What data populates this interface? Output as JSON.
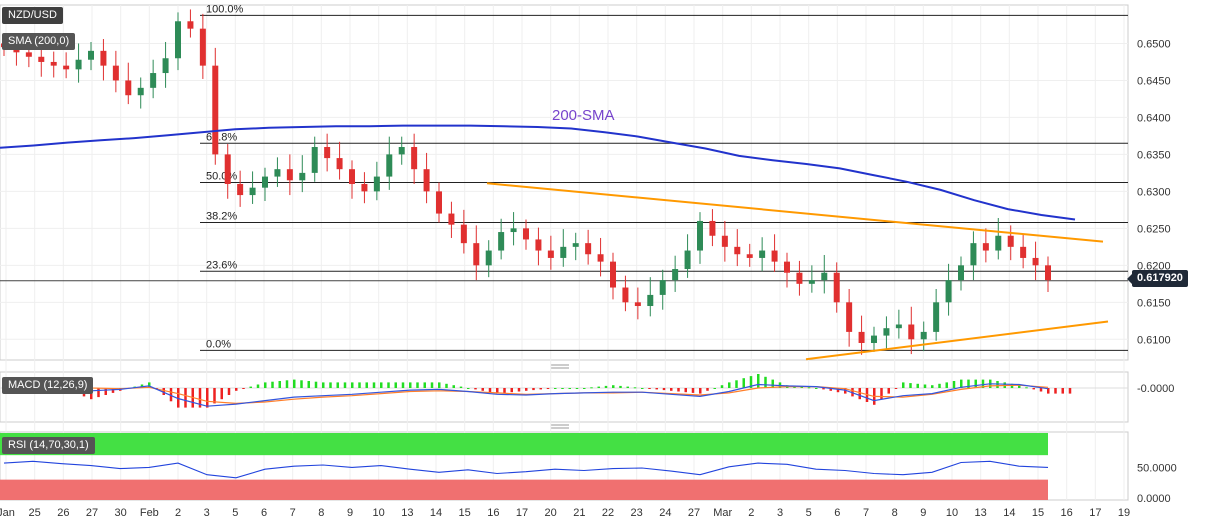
{
  "symbol": "NZD/USD",
  "indicators": {
    "sma_label": "SMA (200,0)",
    "sma_annotation": "200-SMA",
    "macd_label": "MACD (12,26,9)",
    "rsi_label": "RSI (14,70,30,1)"
  },
  "last_price": "0.617920",
  "colors": {
    "bull": "#2e8b57",
    "bear": "#e03030",
    "sma": "#2233cc",
    "trend": "#ff9900",
    "macd_line": "#3355dd",
    "signal_line": "#ff7f2a",
    "hist_pos": "#22dd22",
    "hist_neg": "#ee2222",
    "rsi_line": "#2244dd",
    "rsi_over": "#44e044",
    "rsi_under": "#f07070"
  },
  "chart_data": [
    {
      "type": "candlestick",
      "panel": "price",
      "title": "NZD/USD",
      "x_ticks": [
        "Jan",
        "25",
        "26",
        "27",
        "30",
        "Feb",
        "2",
        "3",
        "5",
        "6",
        "7",
        "8",
        "9",
        "10",
        "13",
        "14",
        "15",
        "16",
        "17",
        "20",
        "21",
        "22",
        "23",
        "24",
        "27",
        "Mar",
        "2",
        "3",
        "5",
        "6",
        "7",
        "8",
        "9",
        "10",
        "13",
        "14",
        "15",
        "16",
        "17",
        "19"
      ],
      "y_ticks": [
        "0.6500",
        "0.6450",
        "0.6400",
        "0.6350",
        "0.6300",
        "0.6250",
        "0.6200",
        "0.6150",
        "0.6100"
      ],
      "ylim": [
        0.6072,
        0.6552
      ],
      "fib_levels": [
        {
          "label": "100.0%",
          "value": 0.6538
        },
        {
          "label": "61.8%",
          "value": 0.6365
        },
        {
          "label": "50.0%",
          "value": 0.6312
        },
        {
          "label": "38.2%",
          "value": 0.6258
        },
        {
          "label": "23.6%",
          "value": 0.6192
        },
        {
          "label": "0.0%",
          "value": 0.6085
        }
      ],
      "sma_200": [
        0.6359,
        0.6362,
        0.6366,
        0.6369,
        0.6372,
        0.6376,
        0.638,
        0.6384,
        0.6386,
        0.6387,
        0.6388,
        0.6388,
        0.6389,
        0.6389,
        0.6389,
        0.6388,
        0.6387,
        0.6385,
        0.638,
        0.6374,
        0.6366,
        0.6358,
        0.6348,
        0.6342,
        0.6337,
        0.6331,
        0.6322,
        0.6313,
        0.6302,
        0.6288,
        0.6276,
        0.6268,
        0.6262
      ],
      "trendline_resistance": [
        {
          "x_idx": 0,
          "y": 0.6311
        },
        {
          "x_idx": 36,
          "y": 0.6232
        }
      ],
      "trendline_support": [
        {
          "x_idx": 0,
          "y": 0.6073
        },
        {
          "x_idx": 36,
          "y": 0.6124
        }
      ],
      "last_price": 0.61792
    },
    {
      "type": "line",
      "panel": "macd",
      "series": [
        {
          "name": "MACD"
        },
        {
          "name": "Signal"
        }
      ],
      "y_ticks": [
        "-0.0000"
      ],
      "macd_line": [
        0.0,
        0.0005,
        0.0003,
        -0.0004,
        -0.0002,
        0.0003,
        -0.0015,
        -0.0026,
        -0.0023,
        -0.0018,
        -0.0013,
        -0.0011,
        -0.0009,
        -0.0006,
        -0.0003,
        -0.0002,
        -0.0005,
        -0.0009,
        -0.001,
        -0.0008,
        -0.0007,
        -0.0006,
        -0.0006,
        -0.0009,
        -0.0012,
        -0.0005,
        0.0005,
        0.0003,
        0.0002,
        -0.0003,
        -0.0018,
        -0.0011,
        -0.0008,
        0.0001,
        0.0006,
        0.0005,
        -0.0001
      ],
      "signal_line": [
        0.0,
        0.0002,
        0.0003,
        0.0,
        -0.0001,
        0.0001,
        -0.0008,
        -0.0019,
        -0.0022,
        -0.002,
        -0.0016,
        -0.0013,
        -0.0011,
        -0.0008,
        -0.0005,
        -0.0004,
        -0.0005,
        -0.0007,
        -0.0009,
        -0.0008,
        -0.0007,
        -0.0007,
        -0.0006,
        -0.0008,
        -0.001,
        -0.0007,
        0.0,
        0.0002,
        0.0002,
        -0.0001,
        -0.0012,
        -0.0013,
        -0.0009,
        -0.0002,
        0.0003,
        0.0004,
        0.0001
      ]
    },
    {
      "type": "line",
      "panel": "rsi",
      "series": [
        {
          "name": "RSI"
        }
      ],
      "y_ticks": [
        "50.0000",
        "0.0000"
      ],
      "ylim": [
        0,
        100
      ],
      "overbought": 70,
      "oversold": 30,
      "rsi": [
        57,
        60,
        56,
        53,
        48,
        50,
        57,
        38,
        33,
        47,
        52,
        54,
        50,
        53,
        47,
        42,
        46,
        40,
        43,
        47,
        45,
        48,
        49,
        44,
        38,
        51,
        57,
        55,
        47,
        45,
        40,
        38,
        42,
        58,
        60,
        52,
        50
      ]
    }
  ]
}
